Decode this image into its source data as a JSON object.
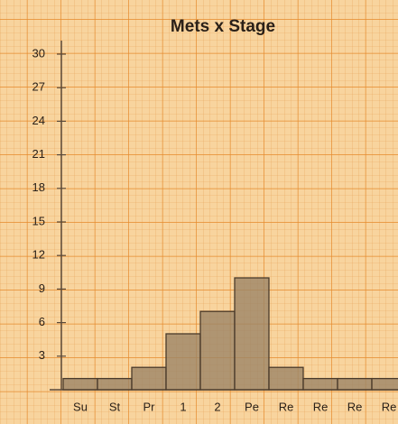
{
  "chart_data": {
    "type": "bar",
    "title": "Mets x Stage",
    "categories": [
      "Su",
      "St",
      "Pr",
      "1",
      "2",
      "Pe",
      "Re",
      "Re",
      "Re",
      "Re"
    ],
    "values": [
      1,
      1,
      2,
      5,
      7,
      10,
      2,
      1,
      1,
      1
    ],
    "color": "#9c8466",
    "ylim": [
      0,
      30
    ],
    "yticks": [
      3,
      6,
      9,
      12,
      15,
      18,
      21,
      24,
      27,
      30
    ]
  }
}
